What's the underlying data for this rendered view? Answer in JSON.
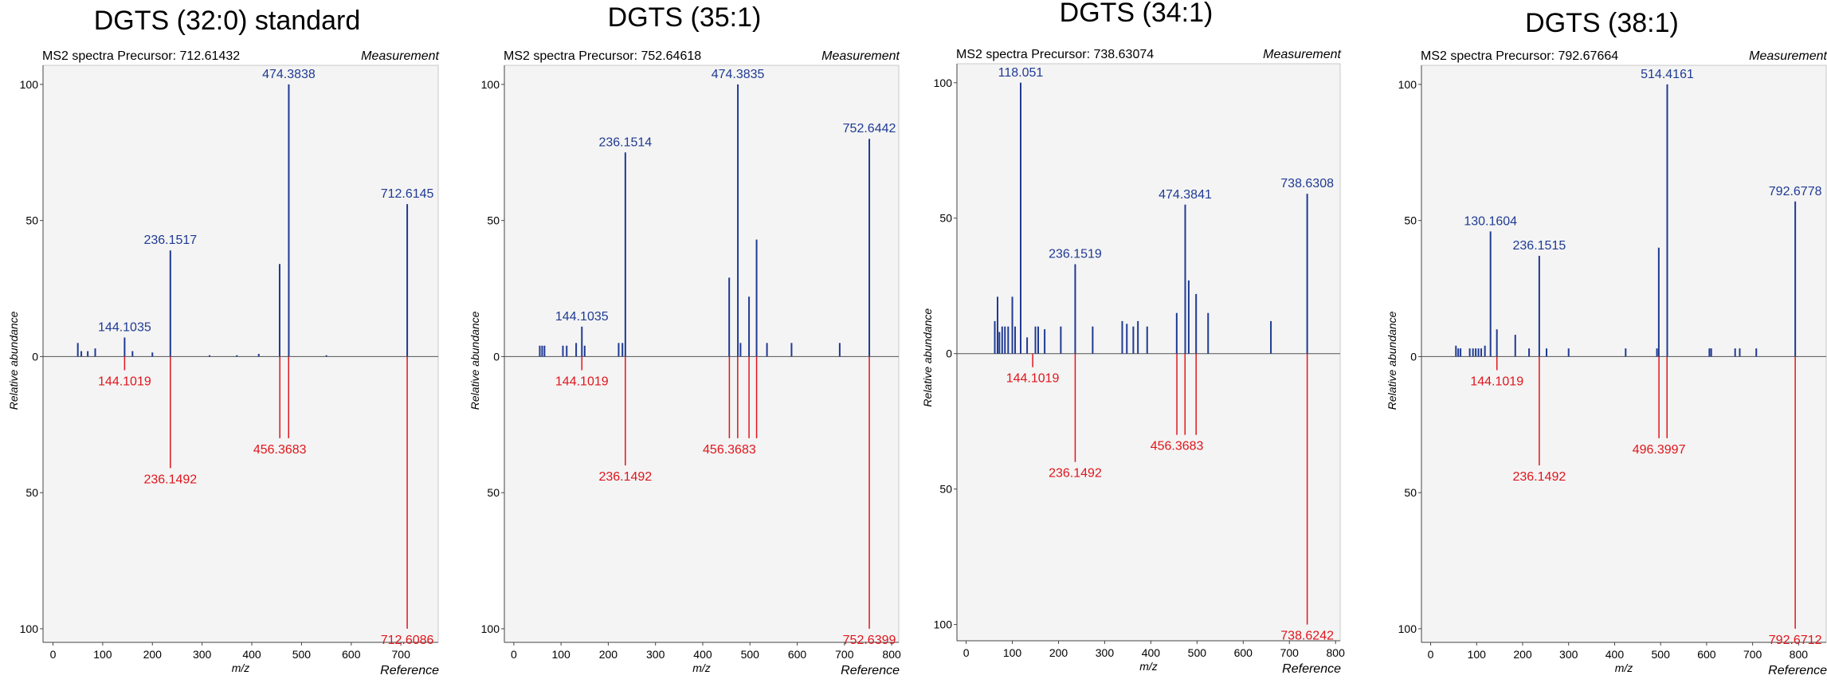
{
  "chart_data": [
    {
      "type": "bar",
      "title": "DGTS (32:0) standard",
      "precursor_label": "MS2 spectra Precursor: 712.61432",
      "top_label": "Measurement",
      "bottom_label": "Reference",
      "xlabel": "m/z",
      "ylabel": "Relative abundance",
      "xlim": [
        -20,
        775
      ],
      "xticks": [
        0,
        100,
        200,
        300,
        400,
        500,
        600,
        700
      ],
      "ylim": [
        -105,
        107
      ],
      "yticks": [
        {
          "v": 100,
          "t": "100"
        },
        {
          "v": 50,
          "t": "50"
        },
        {
          "v": 0,
          "t": "0"
        },
        {
          "v": -50,
          "t": "50"
        },
        {
          "v": -100,
          "t": "100"
        }
      ],
      "measurement_color": "#1f3a93",
      "reference_color": "#e0151b",
      "measurement_peaks": [
        {
          "mz": 50,
          "i": 5
        },
        {
          "mz": 57,
          "i": 2
        },
        {
          "mz": 70,
          "i": 2
        },
        {
          "mz": 85,
          "i": 3
        },
        {
          "mz": 144.1035,
          "i": 7,
          "label": "144.1035"
        },
        {
          "mz": 160,
          "i": 2
        },
        {
          "mz": 200,
          "i": 1.5
        },
        {
          "mz": 236.1517,
          "i": 39,
          "label": "236.1517"
        },
        {
          "mz": 315,
          "i": 0.5
        },
        {
          "mz": 370,
          "i": 0.5
        },
        {
          "mz": 414,
          "i": 1
        },
        {
          "mz": 456,
          "i": 34
        },
        {
          "mz": 474.3838,
          "i": 100,
          "label": "474.3838"
        },
        {
          "mz": 550,
          "i": 0.5
        },
        {
          "mz": 712.6145,
          "i": 56,
          "label": "712.6145"
        }
      ],
      "reference_peaks": [
        {
          "mz": 144.1019,
          "i": 5,
          "label": "144.1019"
        },
        {
          "mz": 236.1492,
          "i": 41,
          "label": "236.1492"
        },
        {
          "mz": 456.3683,
          "i": 30,
          "label": "456.3683"
        },
        {
          "mz": 474,
          "i": 30
        },
        {
          "mz": 712.6086,
          "i": 100,
          "label": "712.6086"
        }
      ]
    },
    {
      "type": "bar",
      "title": "DGTS (35:1)",
      "precursor_label": "MS2 spectra Precursor: 752.64618",
      "top_label": "Measurement",
      "bottom_label": "Reference",
      "xlabel": "m/z",
      "ylabel": "Relative abundance",
      "xlim": [
        -20,
        815
      ],
      "xticks": [
        0,
        100,
        200,
        300,
        400,
        500,
        600,
        700,
        800
      ],
      "ylim": [
        -105,
        107
      ],
      "yticks": [
        {
          "v": 100,
          "t": "100"
        },
        {
          "v": 50,
          "t": "50"
        },
        {
          "v": 0,
          "t": "0"
        },
        {
          "v": -50,
          "t": "50"
        },
        {
          "v": -100,
          "t": "100"
        }
      ],
      "measurement_color": "#1f3a93",
      "reference_color": "#e0151b",
      "measurement_peaks": [
        {
          "mz": 55,
          "i": 4
        },
        {
          "mz": 60,
          "i": 4
        },
        {
          "mz": 65,
          "i": 4
        },
        {
          "mz": 104,
          "i": 4
        },
        {
          "mz": 112,
          "i": 4
        },
        {
          "mz": 132,
          "i": 5
        },
        {
          "mz": 144.1035,
          "i": 11,
          "label": "144.1035"
        },
        {
          "mz": 150,
          "i": 4
        },
        {
          "mz": 222,
          "i": 5
        },
        {
          "mz": 230,
          "i": 5
        },
        {
          "mz": 236.1514,
          "i": 75,
          "label": "236.1514"
        },
        {
          "mz": 456,
          "i": 29
        },
        {
          "mz": 474.3835,
          "i": 100,
          "label": "474.3835"
        },
        {
          "mz": 480,
          "i": 5
        },
        {
          "mz": 498,
          "i": 22
        },
        {
          "mz": 514,
          "i": 43
        },
        {
          "mz": 536,
          "i": 5
        },
        {
          "mz": 588,
          "i": 5
        },
        {
          "mz": 690,
          "i": 5
        },
        {
          "mz": 752.6442,
          "i": 80,
          "label": "752.6442"
        }
      ],
      "reference_peaks": [
        {
          "mz": 144.1019,
          "i": 5,
          "label": "144.1019"
        },
        {
          "mz": 236.1492,
          "i": 40,
          "label": "236.1492"
        },
        {
          "mz": 456.3683,
          "i": 30,
          "label": "456.3683"
        },
        {
          "mz": 474,
          "i": 30
        },
        {
          "mz": 498,
          "i": 30
        },
        {
          "mz": 514,
          "i": 30
        },
        {
          "mz": 752.6399,
          "i": 100,
          "label": "752.6399"
        }
      ]
    },
    {
      "type": "bar",
      "title": "DGTS (34:1)",
      "precursor_label": "MS2 spectra Precursor: 738.63074",
      "top_label": "Measurement",
      "bottom_label": "Reference",
      "xlabel": "m/z",
      "ylabel": "Relative abundance",
      "xlim": [
        -20,
        810
      ],
      "xticks": [
        0,
        100,
        200,
        300,
        400,
        500,
        600,
        700,
        800
      ],
      "ylim": [
        -106,
        107
      ],
      "yticks": [
        {
          "v": 100,
          "t": "100"
        },
        {
          "v": 50,
          "t": "50"
        },
        {
          "v": 0,
          "t": "0"
        },
        {
          "v": -50,
          "t": "50"
        },
        {
          "v": -100,
          "t": "100"
        }
      ],
      "measurement_color": "#1f3a93",
      "reference_color": "#e0151b",
      "measurement_peaks": [
        {
          "mz": 62,
          "i": 12
        },
        {
          "mz": 68,
          "i": 21
        },
        {
          "mz": 72,
          "i": 8
        },
        {
          "mz": 78,
          "i": 10
        },
        {
          "mz": 84,
          "i": 10
        },
        {
          "mz": 91,
          "i": 10
        },
        {
          "mz": 100,
          "i": 21
        },
        {
          "mz": 106,
          "i": 10
        },
        {
          "mz": 118.051,
          "i": 100,
          "label": "118.051"
        },
        {
          "mz": 132,
          "i": 6
        },
        {
          "mz": 150,
          "i": 10
        },
        {
          "mz": 156,
          "i": 10
        },
        {
          "mz": 170,
          "i": 9
        },
        {
          "mz": 205,
          "i": 10
        },
        {
          "mz": 236.1519,
          "i": 33,
          "label": "236.1519"
        },
        {
          "mz": 274,
          "i": 10
        },
        {
          "mz": 338,
          "i": 12
        },
        {
          "mz": 348,
          "i": 11
        },
        {
          "mz": 362,
          "i": 10
        },
        {
          "mz": 372,
          "i": 12
        },
        {
          "mz": 392,
          "i": 10
        },
        {
          "mz": 456,
          "i": 15
        },
        {
          "mz": 474.3841,
          "i": 55,
          "label": "474.3841"
        },
        {
          "mz": 482,
          "i": 27
        },
        {
          "mz": 498,
          "i": 22
        },
        {
          "mz": 524,
          "i": 15
        },
        {
          "mz": 660,
          "i": 12
        },
        {
          "mz": 738.6308,
          "i": 59,
          "label": "738.6308"
        }
      ],
      "reference_peaks": [
        {
          "mz": 144.1019,
          "i": 5,
          "label": "144.1019"
        },
        {
          "mz": 236.1492,
          "i": 40,
          "label": "236.1492"
        },
        {
          "mz": 456.3683,
          "i": 30,
          "label": "456.3683"
        },
        {
          "mz": 474,
          "i": 30
        },
        {
          "mz": 498,
          "i": 30
        },
        {
          "mz": 738.6242,
          "i": 100,
          "label": "738.6242"
        }
      ]
    },
    {
      "type": "bar",
      "title": "DGTS (38:1)",
      "precursor_label": "MS2 spectra Precursor: 792.67664",
      "top_label": "Measurement",
      "bottom_label": "Reference",
      "xlabel": "m/z",
      "ylabel": "Relative abundance",
      "xlim": [
        -20,
        860
      ],
      "xticks": [
        0,
        100,
        200,
        300,
        400,
        500,
        600,
        700,
        800
      ],
      "ylim": [
        -105,
        107
      ],
      "yticks": [
        {
          "v": 100,
          "t": "100"
        },
        {
          "v": 50,
          "t": "50"
        },
        {
          "v": 0,
          "t": "0"
        },
        {
          "v": -50,
          "t": "50"
        },
        {
          "v": -100,
          "t": "100"
        }
      ],
      "measurement_color": "#1f3a93",
      "reference_color": "#e0151b",
      "measurement_peaks": [
        {
          "mz": 55,
          "i": 4
        },
        {
          "mz": 60,
          "i": 3
        },
        {
          "mz": 65,
          "i": 3
        },
        {
          "mz": 85,
          "i": 3
        },
        {
          "mz": 92,
          "i": 3
        },
        {
          "mz": 98,
          "i": 3
        },
        {
          "mz": 104,
          "i": 3
        },
        {
          "mz": 110,
          "i": 3
        },
        {
          "mz": 118,
          "i": 4
        },
        {
          "mz": 130.1604,
          "i": 46,
          "label": "130.1604"
        },
        {
          "mz": 144,
          "i": 10
        },
        {
          "mz": 184,
          "i": 8
        },
        {
          "mz": 214,
          "i": 3
        },
        {
          "mz": 236.1515,
          "i": 37,
          "label": "236.1515"
        },
        {
          "mz": 252,
          "i": 3
        },
        {
          "mz": 300,
          "i": 3
        },
        {
          "mz": 424,
          "i": 3
        },
        {
          "mz": 492,
          "i": 3
        },
        {
          "mz": 496,
          "i": 40
        },
        {
          "mz": 514.4161,
          "i": 100,
          "label": "514.4161"
        },
        {
          "mz": 606,
          "i": 3
        },
        {
          "mz": 610,
          "i": 3
        },
        {
          "mz": 662,
          "i": 3
        },
        {
          "mz": 672,
          "i": 3
        },
        {
          "mz": 708,
          "i": 3
        },
        {
          "mz": 792.6778,
          "i": 57,
          "label": "792.6778"
        }
      ],
      "reference_peaks": [
        {
          "mz": 144.1019,
          "i": 5,
          "label": "144.1019"
        },
        {
          "mz": 236.1492,
          "i": 40,
          "label": "236.1492"
        },
        {
          "mz": 496.3997,
          "i": 30,
          "label": "496.3997"
        },
        {
          "mz": 514,
          "i": 30
        },
        {
          "mz": 792.6712,
          "i": 100,
          "label": "792.6712"
        }
      ]
    }
  ]
}
